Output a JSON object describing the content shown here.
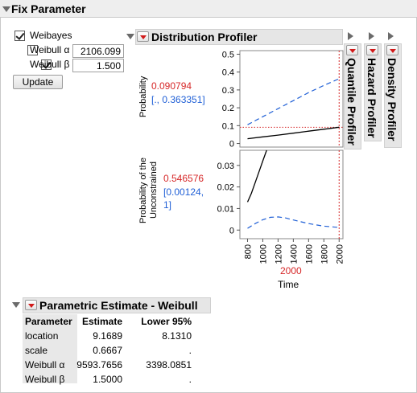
{
  "outline": {
    "title": "Fix Parameter"
  },
  "controls": {
    "weibayes": {
      "label": "Weibayes",
      "checked": true
    },
    "alpha": {
      "label": "Weibull α",
      "checked": false,
      "value": "2106.099"
    },
    "beta": {
      "label": "Weibull β",
      "checked": true,
      "value": "1.500"
    },
    "update_label": "Update"
  },
  "profiler": {
    "title": "Distribution Profiler",
    "side_tabs": [
      "Quantile Profiler",
      "Hazard Profiler",
      "Density Profiler"
    ],
    "panel1": {
      "ylabel": "Probability",
      "value": "0.090794",
      "interval": "[., 0.363351]",
      "ticks": [
        "0.5",
        "0.4",
        "0.3",
        "0.2",
        "0.1",
        "0"
      ]
    },
    "panel2": {
      "ylabel_line1": "Probability of the",
      "ylabel_line2": "Unconstrained",
      "value": "0.546576",
      "interval_line1": "[0.00124,",
      "interval_line2": "1]",
      "ticks": [
        "0.03",
        "0.02",
        "0.01",
        "0"
      ]
    },
    "x_ticks": [
      "800",
      "1000",
      "1200",
      "1400",
      "1600",
      "1800",
      "2000"
    ],
    "x_current": "2000",
    "xlabel": "Time",
    "colors": {
      "solid": "#000000",
      "dashed": "#1f5fd6",
      "crosshair": "#d62728"
    }
  },
  "chart_data": [
    {
      "type": "line",
      "ylabel": "Probability",
      "xlabel": "Time",
      "xlim": [
        700,
        2050
      ],
      "ylim": [
        -0.02,
        0.52
      ],
      "x_current": 2000,
      "y_current": 0.090794,
      "series": [
        {
          "style": "solid",
          "x": [
            800,
            1000,
            1200,
            1400,
            1600,
            1800,
            2000
          ],
          "values": [
            0.027,
            0.037,
            0.047,
            0.058,
            0.069,
            0.08,
            0.091
          ]
        },
        {
          "style": "dashed",
          "x": [
            800,
            1000,
            1200,
            1400,
            1600,
            1800,
            2000
          ],
          "values": [
            0.105,
            0.15,
            0.195,
            0.24,
            0.285,
            0.325,
            0.363
          ]
        }
      ]
    },
    {
      "type": "line",
      "ylabel": "Probability of the Unconstrained",
      "xlabel": "Time",
      "xlim": [
        700,
        2050
      ],
      "ylim": [
        -0.004,
        0.037
      ],
      "x_current": 2000,
      "series": [
        {
          "style": "solid",
          "x": [
            800,
            850,
            900,
            950,
            1000,
            1050
          ],
          "values": [
            0.013,
            0.017,
            0.022,
            0.027,
            0.032,
            0.037
          ]
        },
        {
          "style": "dashed",
          "x": [
            800,
            900,
            1000,
            1100,
            1200,
            1300,
            1400,
            1600,
            1800,
            2000
          ],
          "values": [
            0.0008,
            0.003,
            0.0048,
            0.0059,
            0.0061,
            0.0056,
            0.0047,
            0.003,
            0.0018,
            0.0012
          ]
        }
      ]
    }
  ],
  "estimates": {
    "title": "Parametric Estimate - Weibull",
    "headers": [
      "Parameter",
      "Estimate",
      "Lower 95%"
    ],
    "rows": [
      [
        "location",
        "9.1689",
        "8.1310"
      ],
      [
        "scale",
        "0.6667",
        "."
      ],
      [
        "Weibull α",
        "9593.7656",
        "3398.0851"
      ],
      [
        "Weibull β",
        "1.5000",
        "."
      ]
    ]
  }
}
